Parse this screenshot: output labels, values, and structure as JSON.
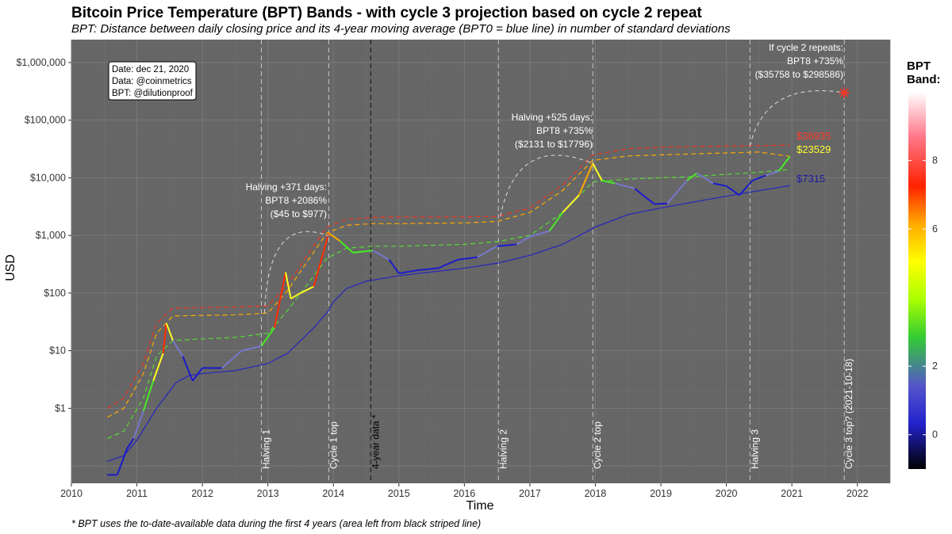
{
  "chart_data": {
    "type": "line",
    "title": "Bitcoin Price Temperature (BPT) Bands - with cycle 3 projection based on cycle 2 repeat",
    "subtitle": "BPT: Distance between daily closing price and its 4-year moving average (BPT0 = blue line) in number of standard deviations",
    "xlabel": "Time",
    "ylabel": "USD",
    "y_scale": "log",
    "xlim": [
      2010,
      2022.5
    ],
    "ylim": [
      0.05,
      2500000
    ],
    "x_ticks": [
      "2010",
      "2011",
      "2012",
      "2013",
      "2014",
      "2015",
      "2016",
      "2017",
      "2018",
      "2019",
      "2020",
      "2021",
      "2022"
    ],
    "y_ticks": [
      {
        "value": 1,
        "label": "$1"
      },
      {
        "value": 10,
        "label": "$10"
      },
      {
        "value": 100,
        "label": "$100"
      },
      {
        "value": 1000,
        "label": "$1,000"
      },
      {
        "value": 10000,
        "label": "$10,000"
      },
      {
        "value": 100000,
        "label": "$100,000"
      },
      {
        "value": 1000000,
        "label": "$1,000,000"
      }
    ],
    "grid": true,
    "background": "#666666",
    "footnote": "* BPT uses the to-date-available data during the first 4 years (area left from black striped line)",
    "info_box": [
      "Date: dec 21, 2020",
      "Data: @coinmetrics",
      "BPT: @dilutionproof"
    ],
    "vlines": [
      {
        "x": 2012.9,
        "label": "Halving 1",
        "color": "#dddddd"
      },
      {
        "x": 2013.93,
        "label": "Cycle 1 top",
        "color": "#dddddd"
      },
      {
        "x": 2014.57,
        "label": "4-year data *",
        "color": "#000000"
      },
      {
        "x": 2016.52,
        "label": "Halving 2",
        "color": "#dddddd"
      },
      {
        "x": 2017.96,
        "label": "Cycle 2 top",
        "color": "#dddddd"
      },
      {
        "x": 2020.36,
        "label": "Halving 3",
        "color": "#dddddd"
      },
      {
        "x": 2021.8,
        "label": "Cycle 3 top? (2021-10-18)",
        "color": "#dddddd"
      }
    ],
    "annotations": [
      {
        "lines": [
          "Halving +371 days:",
          "BPT8 +2086%",
          "($45 to $977)"
        ]
      },
      {
        "lines": [
          "Halving +525 days:",
          "BPT8 +735%",
          "($2131 to $17796)"
        ]
      },
      {
        "lines": [
          "If cycle 2 repeats:",
          "BPT8 +735%",
          "($35758 to $298586)"
        ]
      }
    ],
    "end_labels": [
      {
        "text": "$36935",
        "color": "#ff3a2a"
      },
      {
        "text": "$23529",
        "color": "#ffff33"
      },
      {
        "text": "$7315",
        "color": "#1a1aa8"
      }
    ],
    "projection": {
      "x": 2021.8,
      "y": 298586
    },
    "series": [
      {
        "band": 0,
        "color": "#2a2ab8",
        "points": [
          [
            2010.55,
            0.12
          ],
          [
            2010.8,
            0.15
          ],
          [
            2011.0,
            0.28
          ],
          [
            2011.3,
            1.0
          ],
          [
            2011.6,
            2.8
          ],
          [
            2011.8,
            3.7
          ],
          [
            2012.0,
            4.0
          ],
          [
            2012.5,
            4.5
          ],
          [
            2013.0,
            6.0
          ],
          [
            2013.3,
            9.0
          ],
          [
            2013.7,
            25
          ],
          [
            2013.93,
            50
          ],
          [
            2014.0,
            70
          ],
          [
            2014.2,
            120
          ],
          [
            2014.5,
            160
          ],
          [
            2015.0,
            200
          ],
          [
            2016.0,
            270
          ],
          [
            2016.5,
            330
          ],
          [
            2017.0,
            450
          ],
          [
            2017.5,
            700
          ],
          [
            2018.0,
            1400
          ],
          [
            2018.5,
            2300
          ],
          [
            2019.0,
            3000
          ],
          [
            2019.5,
            3800
          ],
          [
            2020.0,
            4800
          ],
          [
            2020.5,
            6000
          ],
          [
            2020.97,
            7315
          ]
        ]
      },
      {
        "band": 2,
        "color": "#55dd33",
        "points": [
          [
            2010.55,
            0.3
          ],
          [
            2010.8,
            0.4
          ],
          [
            2011.1,
            1.5
          ],
          [
            2011.3,
            8
          ],
          [
            2011.55,
            15
          ],
          [
            2012.0,
            16
          ],
          [
            2012.5,
            17
          ],
          [
            2013.0,
            20
          ],
          [
            2013.3,
            50
          ],
          [
            2013.6,
            140
          ],
          [
            2013.9,
            400
          ],
          [
            2014.2,
            600
          ],
          [
            2014.6,
            650
          ],
          [
            2015.0,
            650
          ],
          [
            2016.0,
            700
          ],
          [
            2016.5,
            780
          ],
          [
            2017.0,
            1000
          ],
          [
            2017.5,
            2500
          ],
          [
            2017.96,
            8500
          ],
          [
            2018.5,
            9500
          ],
          [
            2019.0,
            10000
          ],
          [
            2019.5,
            10500
          ],
          [
            2020.0,
            11500
          ],
          [
            2020.5,
            12500
          ],
          [
            2020.97,
            14000
          ]
        ]
      },
      {
        "band": 6,
        "color": "#ffaa00",
        "points": [
          [
            2010.55,
            0.7
          ],
          [
            2010.8,
            1.0
          ],
          [
            2011.1,
            4
          ],
          [
            2011.3,
            20
          ],
          [
            2011.55,
            40
          ],
          [
            2012.0,
            41
          ],
          [
            2012.5,
            42
          ],
          [
            2013.0,
            45
          ],
          [
            2013.3,
            110
          ],
          [
            2013.6,
            350
          ],
          [
            2013.9,
            1100
          ],
          [
            2014.2,
            1500
          ],
          [
            2014.6,
            1600
          ],
          [
            2015.0,
            1600
          ],
          [
            2016.0,
            1650
          ],
          [
            2016.5,
            1750
          ],
          [
            2017.0,
            2500
          ],
          [
            2017.5,
            6000
          ],
          [
            2017.96,
            20000
          ],
          [
            2018.5,
            24000
          ],
          [
            2019.0,
            25000
          ],
          [
            2019.5,
            26000
          ],
          [
            2020.0,
            27000
          ],
          [
            2020.5,
            28000
          ],
          [
            2020.97,
            23529
          ]
        ]
      },
      {
        "band": 8,
        "color": "#ee3322",
        "points": [
          [
            2010.55,
            1.0
          ],
          [
            2010.8,
            1.5
          ],
          [
            2011.1,
            6
          ],
          [
            2011.3,
            30
          ],
          [
            2011.55,
            55
          ],
          [
            2012.0,
            56
          ],
          [
            2012.5,
            57
          ],
          [
            2013.0,
            60
          ],
          [
            2013.3,
            140
          ],
          [
            2013.6,
            450
          ],
          [
            2013.9,
            1400
          ],
          [
            2014.2,
            1900
          ],
          [
            2014.6,
            2050
          ],
          [
            2015.0,
            2100
          ],
          [
            2016.0,
            2100
          ],
          [
            2016.5,
            2131
          ],
          [
            2017.0,
            3000
          ],
          [
            2017.5,
            7500
          ],
          [
            2017.96,
            25000
          ],
          [
            2018.5,
            32000
          ],
          [
            2019.0,
            34000
          ],
          [
            2019.5,
            35000
          ],
          [
            2020.0,
            35500
          ],
          [
            2020.5,
            36000
          ],
          [
            2020.97,
            36935
          ]
        ]
      },
      {
        "band": "price",
        "name": "",
        "points": [
          [
            2010.55,
            0.07
          ],
          [
            2010.7,
            0.07
          ],
          [
            2010.85,
            0.2
          ],
          [
            2010.95,
            0.3
          ],
          [
            2011.1,
            0.9
          ],
          [
            2011.25,
            3
          ],
          [
            2011.4,
            9
          ],
          [
            2011.45,
            30
          ],
          [
            2011.55,
            15
          ],
          [
            2011.7,
            8
          ],
          [
            2011.85,
            3
          ],
          [
            2012.0,
            5
          ],
          [
            2012.3,
            5
          ],
          [
            2012.6,
            10
          ],
          [
            2012.9,
            12
          ],
          [
            2013.1,
            25
          ],
          [
            2013.27,
            230
          ],
          [
            2013.35,
            80
          ],
          [
            2013.5,
            100
          ],
          [
            2013.7,
            130
          ],
          [
            2013.93,
            1100
          ],
          [
            2014.1,
            800
          ],
          [
            2014.3,
            500
          ],
          [
            2014.6,
            550
          ],
          [
            2014.85,
            380
          ],
          [
            2015.0,
            220
          ],
          [
            2015.3,
            250
          ],
          [
            2015.6,
            270
          ],
          [
            2015.9,
            380
          ],
          [
            2016.2,
            420
          ],
          [
            2016.5,
            650
          ],
          [
            2016.8,
            700
          ],
          [
            2017.0,
            950
          ],
          [
            2017.3,
            1200
          ],
          [
            2017.5,
            2500
          ],
          [
            2017.75,
            5000
          ],
          [
            2017.96,
            17796
          ],
          [
            2018.1,
            9000
          ],
          [
            2018.3,
            8000
          ],
          [
            2018.6,
            6500
          ],
          [
            2018.9,
            3500
          ],
          [
            2019.1,
            3600
          ],
          [
            2019.4,
            9000
          ],
          [
            2019.55,
            12000
          ],
          [
            2019.8,
            8000
          ],
          [
            2020.0,
            7200
          ],
          [
            2020.2,
            5000
          ],
          [
            2020.4,
            9000
          ],
          [
            2020.6,
            11000
          ],
          [
            2020.8,
            13000
          ],
          [
            2020.97,
            23529
          ]
        ]
      }
    ],
    "legend": {
      "title": "BPT\nBand:",
      "ticks": [
        0,
        2,
        6,
        8
      ],
      "placement": "right"
    }
  }
}
